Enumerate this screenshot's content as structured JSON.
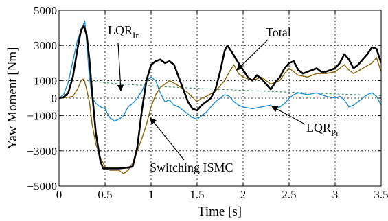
{
  "chart_data": {
    "type": "line",
    "xlabel": "Time [s]",
    "ylabel": "Yaw Moment [Nm]",
    "xlim": [
      0,
      3.5
    ],
    "ylim": [
      -5000,
      5000
    ],
    "xticks": [
      0,
      0.5,
      1,
      1.5,
      2,
      2.5,
      3,
      3.5
    ],
    "xtick_labels": [
      "0",
      "0.5",
      "1",
      "1.5",
      "2",
      "2.5",
      "3",
      "3.5"
    ],
    "yticks": [
      -5000,
      -3000,
      -1000,
      0,
      1000,
      3000,
      5000
    ],
    "ytick_labels": [
      "−5000",
      "−3000",
      "−1000",
      "0",
      "1000",
      "3000",
      "5000"
    ],
    "grid": true,
    "series": [
      {
        "name": "Total",
        "color": "#000000",
        "points": [
          [
            0,
            0
          ],
          [
            0.05,
            50
          ],
          [
            0.1,
            300
          ],
          [
            0.15,
            1200
          ],
          [
            0.2,
            2800
          ],
          [
            0.24,
            3900
          ],
          [
            0.27,
            4100
          ],
          [
            0.3,
            3600
          ],
          [
            0.33,
            2200
          ],
          [
            0.36,
            300
          ],
          [
            0.4,
            -2000
          ],
          [
            0.45,
            -3600
          ],
          [
            0.48,
            -4000
          ],
          [
            0.55,
            -4000
          ],
          [
            0.65,
            -4000
          ],
          [
            0.75,
            -3950
          ],
          [
            0.8,
            -3900
          ],
          [
            0.85,
            -2800
          ],
          [
            0.9,
            -700
          ],
          [
            0.95,
            1000
          ],
          [
            1.0,
            1900
          ],
          [
            1.05,
            2100
          ],
          [
            1.1,
            2200
          ],
          [
            1.15,
            2000
          ],
          [
            1.2,
            2100
          ],
          [
            1.25,
            1900
          ],
          [
            1.3,
            1200
          ],
          [
            1.35,
            500
          ],
          [
            1.4,
            -200
          ],
          [
            1.45,
            -600
          ],
          [
            1.5,
            -700
          ],
          [
            1.55,
            -400
          ],
          [
            1.6,
            -200
          ],
          [
            1.65,
            0
          ],
          [
            1.7,
            500
          ],
          [
            1.75,
            1500
          ],
          [
            1.8,
            2700
          ],
          [
            1.83,
            3000
          ],
          [
            1.88,
            2600
          ],
          [
            1.95,
            2000
          ],
          [
            2.0,
            1600
          ],
          [
            2.05,
            1200
          ],
          [
            2.1,
            1000
          ],
          [
            2.15,
            1300
          ],
          [
            2.2,
            1100
          ],
          [
            2.25,
            800
          ],
          [
            2.3,
            500
          ],
          [
            2.35,
            900
          ],
          [
            2.4,
            1200
          ],
          [
            2.45,
            1700
          ],
          [
            2.5,
            2000
          ],
          [
            2.55,
            2100
          ],
          [
            2.6,
            1600
          ],
          [
            2.65,
            1400
          ],
          [
            2.7,
            1500
          ],
          [
            2.75,
            1600
          ],
          [
            2.8,
            1700
          ],
          [
            2.85,
            1500
          ],
          [
            2.9,
            1500
          ],
          [
            2.95,
            1600
          ],
          [
            3.0,
            1700
          ],
          [
            3.05,
            2000
          ],
          [
            3.1,
            2500
          ],
          [
            3.15,
            2200
          ],
          [
            3.2,
            1700
          ],
          [
            3.25,
            1900
          ],
          [
            3.3,
            2200
          ],
          [
            3.35,
            2500
          ],
          [
            3.4,
            2900
          ],
          [
            3.45,
            2800
          ],
          [
            3.5,
            2000
          ]
        ]
      },
      {
        "name": "Switching ISMC",
        "color": "#8B6508",
        "points": [
          [
            0,
            0
          ],
          [
            0.1,
            50
          ],
          [
            0.15,
            100
          ],
          [
            0.2,
            500
          ],
          [
            0.24,
            1000
          ],
          [
            0.27,
            1100
          ],
          [
            0.3,
            500
          ],
          [
            0.33,
            -200
          ],
          [
            0.36,
            -1500
          ],
          [
            0.4,
            -2600
          ],
          [
            0.45,
            -3400
          ],
          [
            0.5,
            -3900
          ],
          [
            0.55,
            -4100
          ],
          [
            0.65,
            -4100
          ],
          [
            0.7,
            -4300
          ],
          [
            0.75,
            -4100
          ],
          [
            0.8,
            -3700
          ],
          [
            0.85,
            -3000
          ],
          [
            0.9,
            -2300
          ],
          [
            0.95,
            -1500
          ],
          [
            1.0,
            -500
          ],
          [
            1.05,
            200
          ],
          [
            1.1,
            600
          ],
          [
            1.2,
            1000
          ],
          [
            1.3,
            700
          ],
          [
            1.4,
            300
          ],
          [
            1.5,
            -200
          ],
          [
            1.55,
            0
          ],
          [
            1.6,
            100
          ],
          [
            1.7,
            400
          ],
          [
            1.8,
            1000
          ],
          [
            1.85,
            1500
          ],
          [
            1.9,
            1900
          ],
          [
            1.95,
            1400
          ],
          [
            2.0,
            1200
          ],
          [
            2.1,
            1000
          ],
          [
            2.2,
            1200
          ],
          [
            2.3,
            800
          ],
          [
            2.4,
            1000
          ],
          [
            2.45,
            1400
          ],
          [
            2.5,
            1700
          ],
          [
            2.6,
            1300
          ],
          [
            2.7,
            1200
          ],
          [
            2.8,
            1400
          ],
          [
            2.9,
            1400
          ],
          [
            3.0,
            1500
          ],
          [
            3.05,
            1700
          ],
          [
            3.1,
            1900
          ],
          [
            3.15,
            1600
          ],
          [
            3.2,
            1400
          ],
          [
            3.3,
            1700
          ],
          [
            3.4,
            2000
          ],
          [
            3.45,
            2300
          ],
          [
            3.5,
            1500
          ]
        ]
      },
      {
        "name": "LQRPr",
        "color": "#1E90D8",
        "points": [
          [
            0,
            0
          ],
          [
            0.05,
            200
          ],
          [
            0.1,
            900
          ],
          [
            0.15,
            2100
          ],
          [
            0.2,
            3300
          ],
          [
            0.25,
            4000
          ],
          [
            0.28,
            4400
          ],
          [
            0.3,
            3200
          ],
          [
            0.33,
            1200
          ],
          [
            0.36,
            0
          ],
          [
            0.4,
            -300
          ],
          [
            0.45,
            -500
          ],
          [
            0.5,
            -600
          ],
          [
            0.55,
            -1100
          ],
          [
            0.6,
            -1300
          ],
          [
            0.65,
            -1200
          ],
          [
            0.7,
            -1000
          ],
          [
            0.75,
            -500
          ],
          [
            0.8,
            -300
          ],
          [
            0.85,
            0
          ],
          [
            0.9,
            400
          ],
          [
            0.95,
            1000
          ],
          [
            1.0,
            1200
          ],
          [
            1.05,
            1000
          ],
          [
            1.1,
            300
          ],
          [
            1.15,
            -200
          ],
          [
            1.2,
            -100
          ],
          [
            1.25,
            -400
          ],
          [
            1.3,
            -500
          ],
          [
            1.35,
            -700
          ],
          [
            1.4,
            -900
          ],
          [
            1.45,
            -1100
          ],
          [
            1.5,
            -1200
          ],
          [
            1.55,
            -1000
          ],
          [
            1.6,
            -800
          ],
          [
            1.65,
            -500
          ],
          [
            1.7,
            -200
          ],
          [
            1.75,
            0
          ],
          [
            1.8,
            200
          ],
          [
            1.85,
            100
          ],
          [
            1.9,
            -200
          ],
          [
            1.95,
            -400
          ],
          [
            2.0,
            -500
          ],
          [
            2.1,
            -600
          ],
          [
            2.2,
            -500
          ],
          [
            2.3,
            -400
          ],
          [
            2.35,
            -600
          ],
          [
            2.4,
            -500
          ],
          [
            2.45,
            -300
          ],
          [
            2.5,
            0
          ],
          [
            2.55,
            200
          ],
          [
            2.6,
            300
          ],
          [
            2.7,
            200
          ],
          [
            2.8,
            300
          ],
          [
            2.9,
            100
          ],
          [
            3.0,
            0
          ],
          [
            3.05,
            100
          ],
          [
            3.1,
            -100
          ],
          [
            3.15,
            -500
          ],
          [
            3.2,
            -400
          ],
          [
            3.25,
            -200
          ],
          [
            3.3,
            0
          ],
          [
            3.35,
            200
          ],
          [
            3.4,
            300
          ],
          [
            3.45,
            100
          ],
          [
            3.5,
            -400
          ]
        ]
      },
      {
        "name": "LQRIr",
        "color": "#2E8B57",
        "dashed": true,
        "points": [
          [
            0.3,
            1000
          ],
          [
            0.5,
            880
          ],
          [
            0.75,
            780
          ],
          [
            1.0,
            700
          ],
          [
            1.25,
            620
          ],
          [
            1.5,
            560
          ],
          [
            1.75,
            500
          ],
          [
            2.0,
            440
          ],
          [
            2.25,
            390
          ],
          [
            2.5,
            340
          ],
          [
            2.75,
            290
          ],
          [
            3.0,
            240
          ],
          [
            3.25,
            190
          ],
          [
            3.5,
            150
          ]
        ]
      }
    ],
    "annotations": [
      {
        "text": "Total",
        "sub": ""
      },
      {
        "text": "Switching ISMC",
        "sub": ""
      },
      {
        "text": "LQR",
        "sub": "Pr"
      },
      {
        "text": "LQR",
        "sub": "Ir"
      }
    ]
  }
}
